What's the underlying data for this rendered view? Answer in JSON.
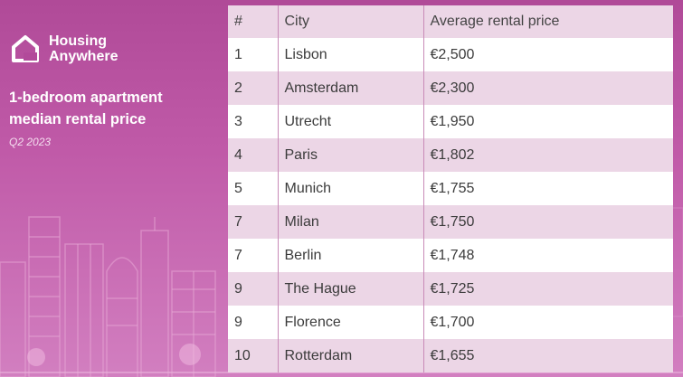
{
  "brand": {
    "name_line1": "Housing",
    "name_line2": "Anywhere",
    "icon": "house-logo-icon"
  },
  "headline": {
    "line1": "1-bedroom apartment",
    "line2": "median rental price"
  },
  "period": "Q2 2023",
  "table": {
    "headers": [
      "#",
      "City",
      "Average rental price"
    ],
    "rows": [
      {
        "rank": "1",
        "city": "Lisbon",
        "price": "€2,500"
      },
      {
        "rank": "2",
        "city": "Amsterdam",
        "price": "€2,300"
      },
      {
        "rank": "3",
        "city": "Utrecht",
        "price": "€1,950"
      },
      {
        "rank": "4",
        "city": "Paris",
        "price": "€1,802"
      },
      {
        "rank": "5",
        "city": "Munich",
        "price": "€1,755"
      },
      {
        "rank": "7",
        "city": "Milan",
        "price": "€1,750"
      },
      {
        "rank": "7",
        "city": "Berlin",
        "price": "€1,748"
      },
      {
        "rank": "9",
        "city": "The Hague",
        "price": "€1,725"
      },
      {
        "rank": "9",
        "city": "Florence",
        "price": "€1,700"
      },
      {
        "rank": "10",
        "city": "Rotterdam",
        "price": "€1,655"
      }
    ]
  },
  "colors": {
    "background": "#b24a9a",
    "row_alt": "#ecd6e6",
    "divider": "#c98ab8"
  }
}
